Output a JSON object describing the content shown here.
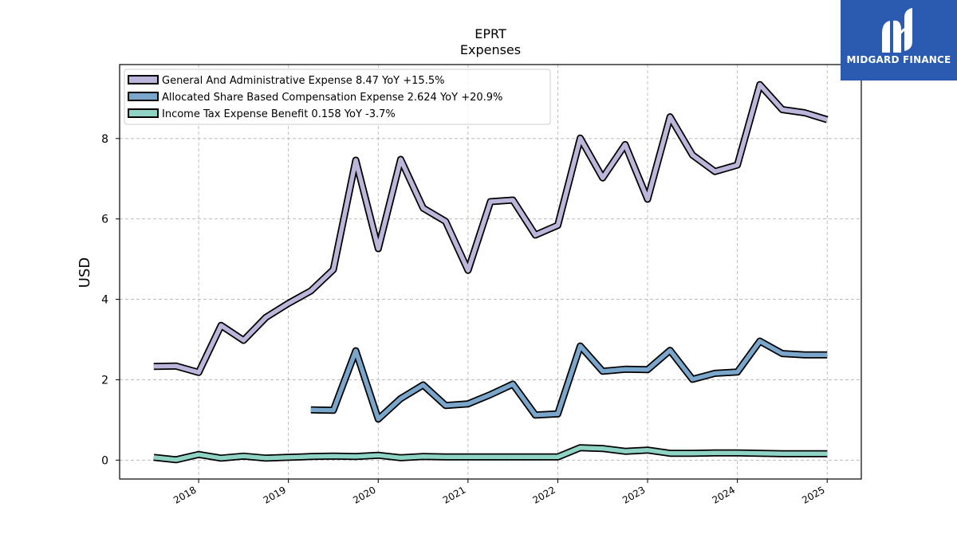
{
  "brand": {
    "name": "MIDGARD FINANCE",
    "bg_color": "#2a5bb0",
    "icon": "midgard-logo-icon"
  },
  "chart_data": {
    "type": "line",
    "title": "EPRT",
    "subtitle": "Expenses",
    "xlabel": "",
    "ylabel": "USD",
    "xlim": [
      2017.12,
      2025.38
    ],
    "ylim": [
      -0.47,
      9.84
    ],
    "x_ticks": [
      2018,
      2019,
      2020,
      2021,
      2022,
      2023,
      2024,
      2025
    ],
    "x_tick_labels": [
      "2018",
      "2019",
      "2020",
      "2021",
      "2022",
      "2023",
      "2024",
      "2025"
    ],
    "y_ticks": [
      0,
      2,
      4,
      6,
      8
    ],
    "y_tick_labels": [
      "0",
      "2",
      "4",
      "6",
      "8"
    ],
    "grid": true,
    "legend_position": "top-left",
    "series": [
      {
        "name": "General And Administrative Expense",
        "legend": "General And Administrative Expense  8.47 YoY +15.5%",
        "color": "#bcb6db",
        "x": [
          2017.5,
          2017.75,
          2018.0,
          2018.25,
          2018.5,
          2018.75,
          2019.0,
          2019.25,
          2019.5,
          2019.75,
          2020.0,
          2020.25,
          2020.5,
          2020.75,
          2021.0,
          2021.25,
          2021.5,
          2021.75,
          2022.0,
          2022.25,
          2022.5,
          2022.75,
          2023.0,
          2023.25,
          2023.5,
          2023.75,
          2024.0,
          2024.25,
          2024.5,
          2024.75,
          2025.0
        ],
        "values": [
          2.33,
          2.34,
          2.18,
          3.35,
          2.98,
          3.55,
          3.9,
          4.21,
          4.74,
          7.46,
          5.26,
          7.48,
          6.27,
          5.94,
          4.72,
          6.43,
          6.47,
          5.6,
          5.84,
          8.01,
          7.02,
          7.85,
          6.49,
          8.54,
          7.59,
          7.18,
          7.34,
          9.34,
          8.72,
          8.64,
          8.47
        ]
      },
      {
        "name": "Allocated Share Based Compensation Expense",
        "legend": "Allocated Share Based Compensation Expense  2.624 YoY +20.9%",
        "color": "#7aa6cc",
        "x": [
          2019.25,
          2019.5,
          2019.75,
          2020.0,
          2020.25,
          2020.5,
          2020.75,
          2021.0,
          2021.25,
          2021.5,
          2021.75,
          2022.0,
          2022.25,
          2022.5,
          2022.75,
          2023.0,
          2023.25,
          2023.5,
          2023.75,
          2024.0,
          2024.25,
          2024.5,
          2024.75,
          2025.0
        ],
        "values": [
          1.25,
          1.24,
          2.72,
          1.02,
          1.53,
          1.87,
          1.36,
          1.4,
          1.63,
          1.89,
          1.12,
          1.15,
          2.84,
          2.21,
          2.26,
          2.25,
          2.73,
          2.01,
          2.16,
          2.19,
          2.96,
          2.65,
          2.62,
          2.62
        ]
      },
      {
        "name": "Income Tax Expense Benefit",
        "legend": "Income Tax Expense Benefit  0.158 YoY -3.7%",
        "color": "#8fd3c4",
        "x": [
          2017.5,
          2017.75,
          2018.0,
          2018.25,
          2018.5,
          2018.75,
          2019.0,
          2019.25,
          2019.5,
          2019.75,
          2020.0,
          2020.25,
          2020.5,
          2020.75,
          2021.0,
          2021.25,
          2021.5,
          2021.75,
          2022.0,
          2022.25,
          2022.5,
          2022.75,
          2023.0,
          2023.25,
          2023.5,
          2023.75,
          2024.0,
          2024.25,
          2024.5,
          2024.75,
          2025.0
        ],
        "values": [
          0.07,
          0.01,
          0.14,
          0.05,
          0.1,
          0.05,
          0.07,
          0.09,
          0.1,
          0.09,
          0.12,
          0.06,
          0.09,
          0.08,
          0.08,
          0.08,
          0.08,
          0.08,
          0.08,
          0.31,
          0.29,
          0.22,
          0.25,
          0.17,
          0.17,
          0.18,
          0.18,
          0.17,
          0.16,
          0.16,
          0.16
        ]
      }
    ]
  }
}
